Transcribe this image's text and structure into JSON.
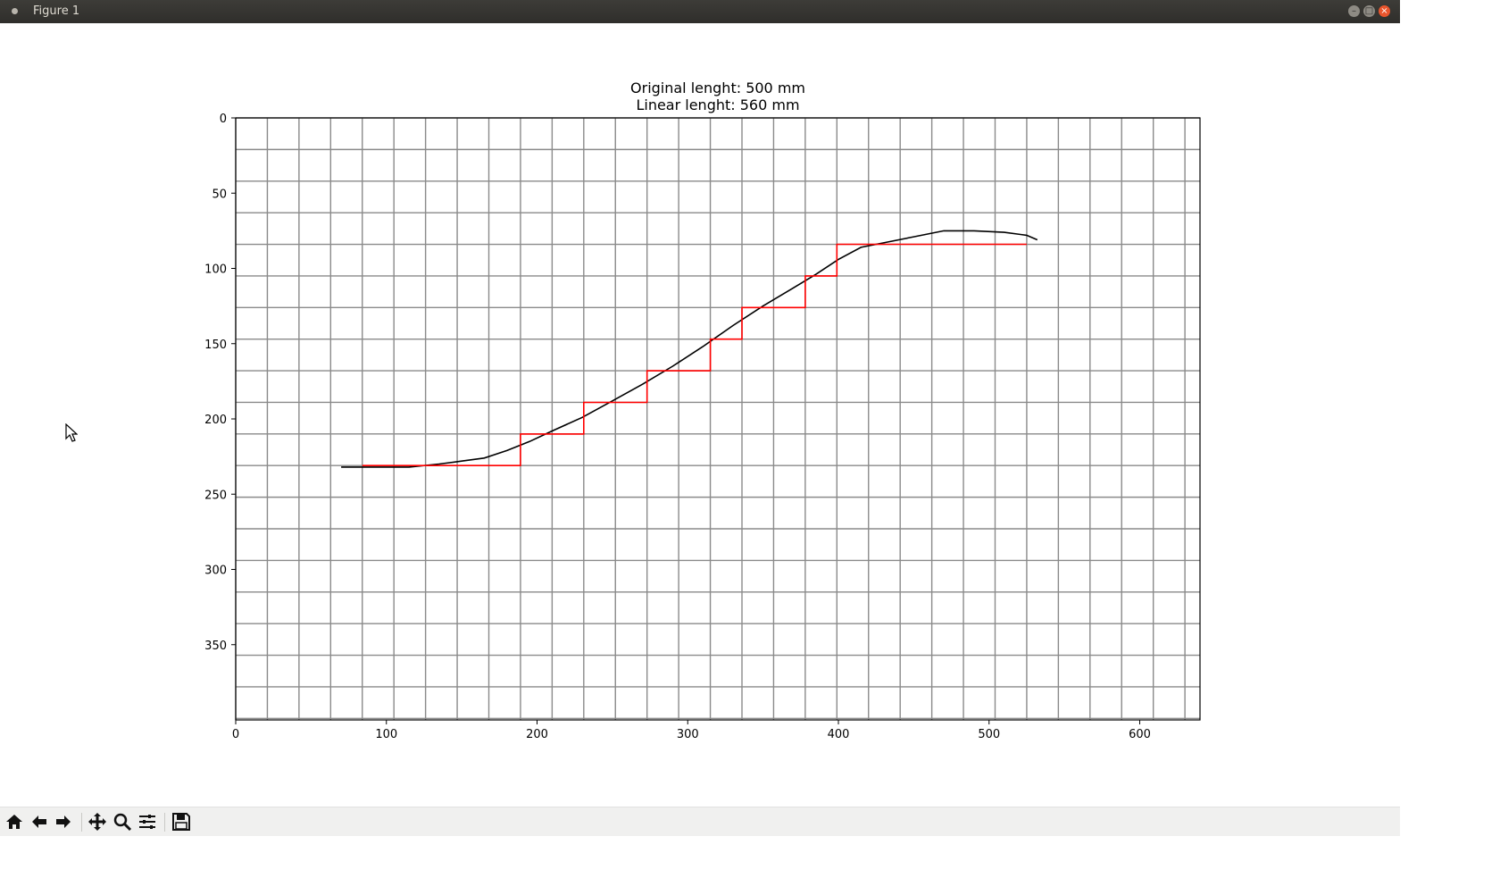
{
  "window": {
    "title": "Figure 1"
  },
  "window_controls": {
    "minimize": "–",
    "maximize": "□",
    "close": "×"
  },
  "toolbar": {
    "buttons": [
      "home-icon",
      "back-icon",
      "forward-icon",
      "pan-icon",
      "zoom-icon",
      "subplots-icon",
      "save-icon"
    ],
    "coords": ""
  },
  "colors": {
    "step_line": "#ff0000",
    "curve": "#000000",
    "grid": "#808080"
  },
  "chart_data": {
    "type": "line",
    "title": "Original lenght: 500 mm\nLinear lenght: 560 mm",
    "title_lines": [
      "Original lenght: 500 mm",
      "Linear lenght: 560 mm"
    ],
    "xlabel": "",
    "ylabel": "",
    "xlim": [
      0,
      640
    ],
    "ylim": [
      400,
      0
    ],
    "y_inverted": true,
    "xticks": [
      0,
      100,
      200,
      300,
      400,
      500,
      600
    ],
    "yticks": [
      0,
      50,
      100,
      150,
      200,
      250,
      300,
      350
    ],
    "grid": true,
    "grid_step": 21,
    "series": [
      {
        "color": "#000000",
        "x": [
          70,
          90,
          115,
          135,
          150,
          165,
          180,
          195,
          210,
          230,
          250,
          270,
          290,
          310,
          330,
          350,
          370,
          385,
          400,
          415,
          430,
          450,
          470,
          490,
          510,
          525,
          532
        ],
        "y": [
          232,
          232,
          232,
          230,
          228,
          226,
          221,
          215,
          208,
          199,
          188,
          177,
          165,
          152,
          138,
          125,
          113,
          104,
          94,
          86,
          83,
          79,
          75,
          75,
          76,
          78,
          81
        ]
      },
      {
        "color": "#ff0000",
        "x": [
          84,
          189,
          189,
          231,
          231,
          273,
          273,
          315,
          315,
          336,
          336,
          378,
          378,
          399,
          399,
          525
        ],
        "y": [
          231,
          231,
          210,
          210,
          189,
          189,
          168,
          168,
          147,
          147,
          126,
          126,
          105,
          105,
          84,
          84
        ]
      }
    ]
  }
}
